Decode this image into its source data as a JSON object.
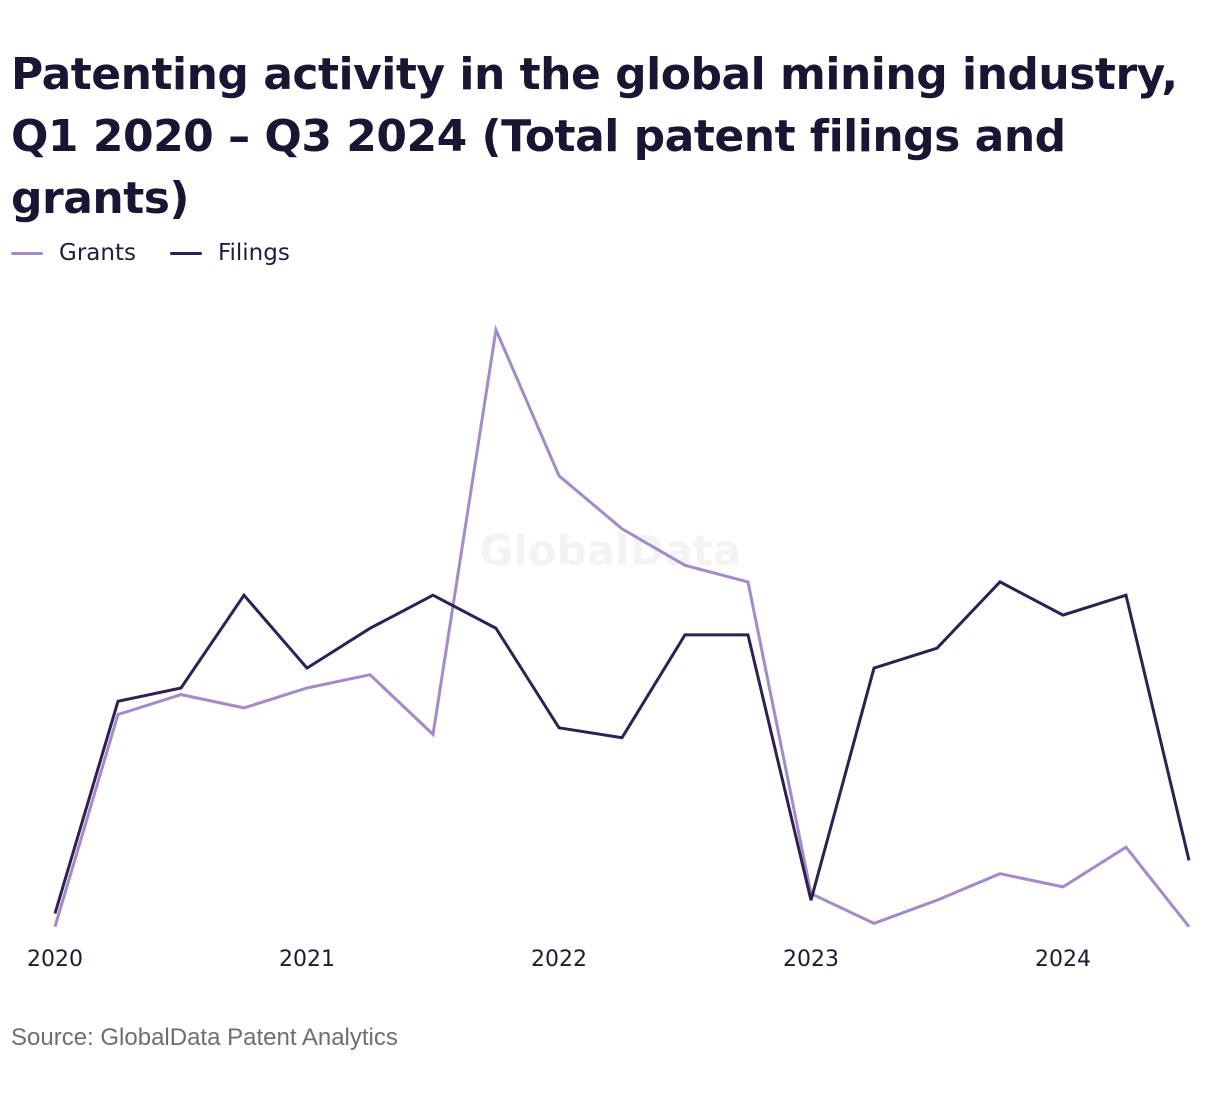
{
  "chart_data": {
    "type": "line",
    "title": "Patenting activity in the global mining industry, Q1 2020 – Q3 2024 (Total patent filings and grants)",
    "x": [
      "2020 Q1",
      "2020 Q2",
      "2020 Q3",
      "2020 Q4",
      "2021 Q1",
      "2021 Q2",
      "2021 Q3",
      "2021 Q4",
      "2022 Q1",
      "2022 Q2",
      "2022 Q3",
      "2022 Q4",
      "2023 Q1",
      "2023 Q2",
      "2023 Q3",
      "2023 Q4",
      "2024 Q1",
      "2024 Q2",
      "2024 Q3"
    ],
    "x_ticks": [
      "2020",
      "2021",
      "2022",
      "2023",
      "2024"
    ],
    "series": [
      {
        "name": "Grants",
        "color": "#a48bc7",
        "values": [
          300,
          620,
          650,
          630,
          660,
          680,
          590,
          1200,
          980,
          900,
          845,
          820,
          350,
          305,
          340,
          380,
          360,
          420,
          300
        ]
      },
      {
        "name": "Filings",
        "color": "#2e2050",
        "values": [
          320,
          640,
          660,
          800,
          690,
          750,
          800,
          750,
          600,
          585,
          740,
          740,
          340,
          690,
          720,
          820,
          770,
          800,
          400
        ]
      }
    ],
    "grid": false,
    "legend": "top-left",
    "watermark": "GlobalData",
    "source": "Source: GlobalData Patent Analytics"
  }
}
